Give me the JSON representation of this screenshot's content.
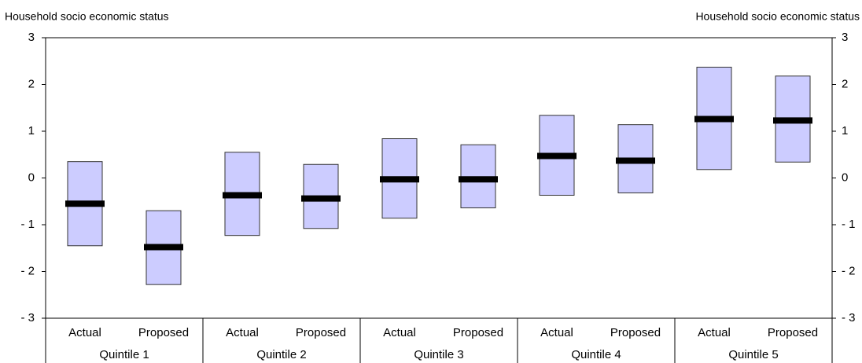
{
  "chart_data": {
    "type": "floating_bar",
    "y_title": "Household socio economic status",
    "y2_title": "Household socio economic status",
    "categories": [
      "Actual",
      "Proposed",
      "Actual",
      "Proposed",
      "Actual",
      "Proposed",
      "Actual",
      "Proposed",
      "Actual",
      "Proposed"
    ],
    "groups": [
      "Quintile 1",
      "Quintile 2",
      "Quintile 3",
      "Quintile 4",
      "Quintile 5"
    ],
    "low": [
      -1.45,
      -2.28,
      -1.23,
      -1.08,
      -0.86,
      -0.64,
      -0.37,
      -0.32,
      0.18,
      0.34
    ],
    "high": [
      0.35,
      -0.7,
      0.55,
      0.29,
      0.84,
      0.71,
      1.34,
      1.14,
      2.37,
      2.18
    ],
    "mean": [
      -0.55,
      -1.48,
      -0.37,
      -0.44,
      -0.03,
      -0.03,
      0.47,
      0.37,
      1.26,
      1.23
    ],
    "color": "#ccccff",
    "mean_color": "#000000",
    "ylim": [
      -3,
      3
    ],
    "yticks": [
      {
        "value": -3,
        "label": "- 3"
      },
      {
        "value": -2,
        "label": "- 2"
      },
      {
        "value": -1,
        "label": "- 1"
      },
      0,
      1,
      2,
      3
    ],
    "y2lim": [
      -3,
      3
    ],
    "y2ticks": [
      {
        "value": -3,
        "label": "- 3"
      },
      {
        "value": -2,
        "label": "- 2"
      },
      {
        "value": -1,
        "label": "- 1"
      },
      0,
      1,
      2,
      3
    ]
  }
}
